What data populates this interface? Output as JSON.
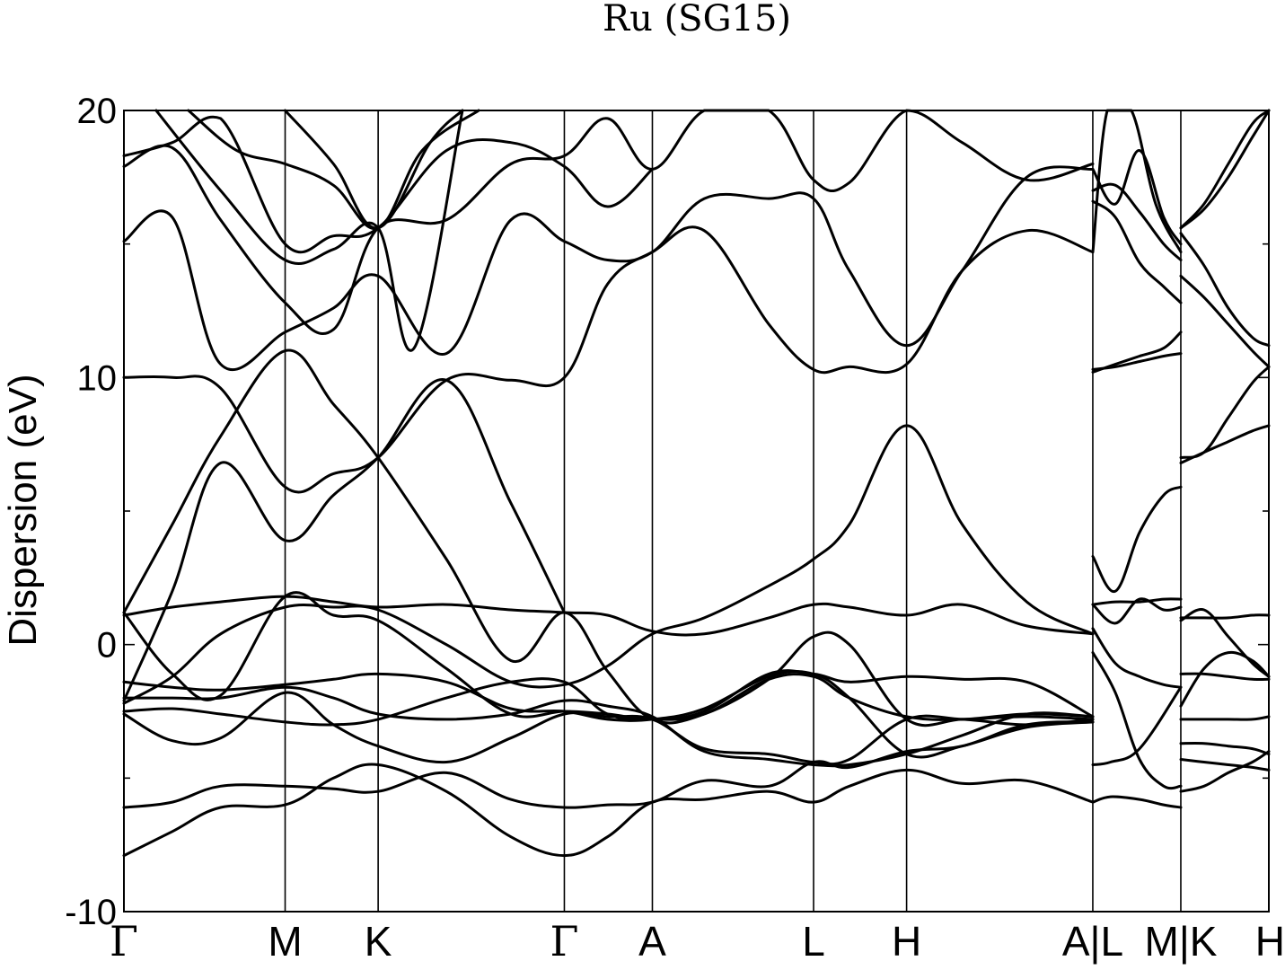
{
  "chart_data": {
    "type": "line",
    "title": "Ru (SG15)",
    "xlabel": "",
    "ylabel": "Dispersion (eV)",
    "ylim": [
      -10,
      20
    ],
    "y_ticks": [
      {
        "value": -10,
        "label": "-10"
      },
      {
        "value": 0,
        "label": "0"
      },
      {
        "value": 10,
        "label": "10"
      },
      {
        "value": 20,
        "label": "20"
      }
    ],
    "y_minor_ticks": [
      -5,
      5,
      15
    ],
    "x_ticks": [
      {
        "label": "Γ",
        "x": 0.0
      },
      {
        "label": "M",
        "x": 1.0
      },
      {
        "label": "K",
        "x": 1.577
      },
      {
        "label": "Γ",
        "x": 2.732
      },
      {
        "label": "A",
        "x": 3.278
      },
      {
        "label": "L",
        "x": 4.278
      },
      {
        "label": "H",
        "x": 4.855
      },
      {
        "label": "A|L",
        "x": 6.01
      },
      {
        "label": "M|K",
        "x": 6.556
      },
      {
        "label": "H",
        "x": 7.102
      }
    ],
    "xlim": [
      0,
      7.102
    ],
    "grid": false,
    "series": [
      {
        "x": [
          0,
          0.3,
          0.6,
          1.0,
          1.3,
          1.577,
          2.0,
          2.4,
          2.732,
          3.0,
          3.278,
          3.6,
          4.0,
          4.278,
          4.5,
          4.855,
          5.2,
          5.6,
          6.01
        ],
        "values": [
          -7.9,
          -7.0,
          -6.1,
          -6.0,
          -5.0,
          -4.5,
          -5.5,
          -7.2,
          -7.9,
          -7.2,
          -5.9,
          -5.8,
          -5.5,
          -5.9,
          -5.3,
          -4.7,
          -5.2,
          -5.1,
          -5.9
        ]
      },
      {
        "x": [
          0,
          0.3,
          0.6,
          1.0,
          1.3,
          1.577,
          2.0,
          2.4,
          2.732,
          3.0,
          3.278,
          3.6,
          4.0,
          4.278,
          4.5,
          4.855,
          5.2,
          5.6,
          6.01
        ],
        "values": [
          -6.1,
          -5.9,
          -5.3,
          -5.3,
          -5.4,
          -5.5,
          -4.8,
          -5.8,
          -6.1,
          -6.0,
          -5.9,
          -5.1,
          -5.3,
          -4.4,
          -4.6,
          -4.0,
          -3.8,
          -3.0,
          -2.9
        ]
      },
      {
        "x": [
          0,
          0.3,
          0.6,
          1.0,
          1.3,
          1.577,
          2.0,
          2.4,
          2.732,
          3.0,
          3.278,
          3.6,
          4.0,
          4.278,
          4.5,
          4.855,
          5.2,
          5.6,
          6.01
        ],
        "values": [
          -2.6,
          -3.6,
          -3.5,
          -1.8,
          -3.0,
          -3.8,
          -4.4,
          -3.5,
          -2.6,
          -2.7,
          -2.8,
          -3.9,
          -4.1,
          -4.4,
          -4.3,
          -2.8,
          -2.8,
          -3.0,
          -2.8
        ]
      },
      {
        "x": [
          0,
          0.3,
          0.6,
          1.0,
          1.3,
          1.577,
          2.0,
          2.4,
          2.732,
          3.0,
          3.278,
          3.6,
          4.0,
          4.278,
          4.5,
          4.855,
          5.2,
          5.6,
          6.01
        ],
        "values": [
          -2.5,
          -2.4,
          -2.6,
          -2.9,
          -3.0,
          -2.8,
          -2.0,
          -1.4,
          -1.4,
          -2.6,
          -2.8,
          -2.5,
          -1.1,
          -1.1,
          -1.4,
          -1.2,
          -1.3,
          -1.4,
          -2.7
        ]
      },
      {
        "x": [
          0,
          0.3,
          0.6,
          1.0,
          1.3,
          1.577,
          2.0,
          2.4,
          2.732,
          3.0,
          3.278,
          3.6,
          4.0,
          4.278,
          4.5,
          4.855,
          5.2,
          5.6,
          6.01
        ],
        "values": [
          -1.4,
          -1.6,
          -1.7,
          -1.5,
          -1.3,
          -1.1,
          -1.4,
          -2.4,
          -2.5,
          -2.8,
          -2.8,
          -2.4,
          -1.2,
          -1.1,
          -2.0,
          -4.1,
          -3.8,
          -3.1,
          -2.9
        ]
      },
      {
        "x": [
          0,
          0.3,
          0.6,
          1.0,
          1.3,
          1.577,
          2.0,
          2.4,
          2.732,
          3.0,
          3.278,
          3.6,
          4.0,
          4.278,
          4.5,
          4.855,
          5.2,
          5.6,
          6.01
        ],
        "values": [
          -2.0,
          -2.0,
          -2.0,
          -1.6,
          -2.0,
          -2.6,
          -2.8,
          -2.6,
          -2.1,
          -2.3,
          -2.7,
          -4.0,
          -4.3,
          -4.5,
          -4.5,
          -4.1,
          -3.4,
          -2.6,
          -2.7
        ]
      },
      {
        "x": [
          0,
          0.3,
          0.6,
          1.0,
          1.3,
          1.577,
          2.0,
          2.4,
          2.732,
          3.0,
          3.278,
          3.6,
          4.0,
          4.278,
          4.5,
          4.855,
          5.2,
          5.6,
          6.01
        ],
        "values": [
          1.1,
          1.4,
          1.6,
          1.8,
          1.6,
          1.4,
          1.5,
          1.3,
          1.2,
          1.1,
          0.5,
          0.4,
          1.0,
          1.5,
          1.4,
          1.1,
          1.5,
          0.7,
          0.4
        ]
      },
      {
        "x": [
          0,
          0.3,
          0.6,
          1.0,
          1.3,
          1.577,
          2.0,
          2.4,
          2.732,
          3.0,
          3.278,
          3.6,
          4.0,
          4.278,
          4.5,
          4.855,
          5.2,
          5.6,
          6.01
        ],
        "values": [
          -2.2,
          -1.2,
          0.4,
          1.4,
          1.4,
          1.3,
          0.0,
          -1.4,
          -1.5,
          -0.8,
          0.4,
          1.0,
          2.2,
          3.2,
          4.5,
          8.2,
          4.5,
          1.6,
          0.4
        ]
      },
      {
        "x": [
          0,
          0.3,
          0.6,
          1.0,
          1.3,
          1.577,
          2.0,
          2.4,
          2.732,
          3.0,
          3.278,
          3.6,
          4.0,
          4.278,
          4.5,
          4.855,
          5.2,
          5.6,
          6.01
        ],
        "values": [
          1.2,
          -1.1,
          -1.9,
          1.8,
          1.1,
          0.9,
          -0.9,
          -2.6,
          -2.5,
          -2.6,
          -2.8,
          -2.6,
          -1.3,
          0.3,
          0.0,
          -2.8,
          -2.8,
          -2.7,
          -2.8
        ]
      },
      {
        "x": [
          0,
          0.3,
          0.6,
          1.0,
          1.3,
          1.577,
          2.0,
          2.4,
          2.732,
          3.0,
          3.278,
          3.6,
          4.0,
          4.278,
          4.5,
          4.855,
          5.2,
          5.6,
          6.01
        ],
        "values": [
          1.2,
          4.5,
          7.8,
          11.0,
          9.0,
          7.0,
          3.2,
          -0.6,
          1.2,
          -1.0,
          -2.8,
          -2.6,
          -1.3,
          -1.2,
          -2.0,
          -2.7,
          -2.8,
          -2.6,
          -2.7
        ]
      },
      {
        "x": [
          0,
          0.3,
          0.6,
          1.0,
          1.3,
          1.577,
          2.0,
          2.4,
          2.732
        ],
        "values": [
          -2.1,
          2.0,
          6.8,
          3.9,
          5.6,
          7.0,
          9.9,
          5.3,
          1.2
        ]
      },
      {
        "x": [
          0,
          0.3,
          0.6,
          1.0,
          1.3,
          1.577,
          2.0,
          2.4,
          2.732,
          3.0,
          3.278,
          3.6,
          4.0,
          4.278,
          4.5,
          4.855,
          5.2,
          5.6,
          6.01
        ],
        "values": [
          10.0,
          10.0,
          9.6,
          5.9,
          6.4,
          7.0,
          9.9,
          9.9,
          10.0,
          13.5,
          14.7,
          15.5,
          12.0,
          10.3,
          10.4,
          10.5,
          14.0,
          15.5,
          14.7
        ]
      },
      {
        "x": [
          0,
          0.3,
          0.6,
          1.0,
          1.3,
          1.577,
          2.0,
          2.4,
          2.732,
          3.0,
          3.278,
          3.6,
          4.0,
          4.278,
          4.5,
          4.855,
          5.2,
          5.6,
          6.01
        ],
        "values": [
          15.1,
          16.0,
          10.5,
          11.7,
          12.6,
          13.8,
          10.9,
          15.9,
          15.1,
          14.4,
          14.7,
          16.7,
          16.7,
          16.7,
          14.0,
          11.2,
          14.0,
          17.5,
          17.8
        ]
      },
      {
        "x": [
          0,
          0.3,
          0.6,
          1.0,
          1.3,
          1.577,
          2.0,
          2.4,
          2.732,
          3.0,
          3.278,
          3.6,
          4.0,
          4.278,
          4.5,
          4.855,
          5.2,
          5.6,
          6.01
        ],
        "values": [
          17.9,
          18.6,
          15.9,
          12.8,
          11.8,
          15.6,
          15.9,
          18.0,
          18.3,
          19.7,
          17.8,
          20.0,
          20.0,
          17.4,
          17.3,
          20.0,
          18.8,
          17.4,
          18.0
        ]
      },
      {
        "x": [
          0,
          0.3,
          0.6,
          1.0,
          1.3,
          1.577,
          2.0,
          2.4,
          2.732,
          3.0,
          3.278
        ],
        "values": [
          18.3,
          18.8,
          19.7,
          15.0,
          15.3,
          15.6,
          18.5,
          18.8,
          17.9,
          16.4,
          17.8
        ]
      },
      {
        "x": [
          0.2,
          0.6,
          1.0,
          1.3,
          1.577,
          1.8,
          2.1
        ],
        "values": [
          20.0,
          17.0,
          14.4,
          14.8,
          15.6,
          11.1,
          20.0
        ]
      },
      {
        "x": [
          0.4,
          0.7,
          1.0,
          1.3,
          1.577,
          1.85,
          2.2
        ],
        "values": [
          20.0,
          18.5,
          18.0,
          17.2,
          15.6,
          18.5,
          20.0
        ]
      },
      {
        "x": [
          1.0,
          1.3,
          1.577,
          1.9,
          2.1
        ],
        "values": [
          20.0,
          18.0,
          15.6,
          18.8,
          20.0
        ]
      },
      {
        "x": [
          6.01,
          6.12,
          6.3,
          6.556
        ],
        "values": [
          -4.5,
          -4.4,
          -3.9,
          -1.6
        ]
      },
      {
        "x": [
          6.01,
          6.15,
          6.3,
          6.45,
          6.556
        ],
        "values": [
          -0.3,
          -1.8,
          -4.3,
          -5.3,
          -5.3
        ]
      },
      {
        "x": [
          6.01,
          6.15,
          6.3,
          6.45,
          6.556
        ],
        "values": [
          0.6,
          -0.7,
          -1.2,
          -1.5,
          -1.6
        ]
      },
      {
        "x": [
          6.01,
          6.15,
          6.3,
          6.45,
          6.556
        ],
        "values": [
          1.5,
          0.8,
          1.7,
          1.3,
          1.4
        ]
      },
      {
        "x": [
          6.01,
          6.15,
          6.3,
          6.45,
          6.556
        ],
        "values": [
          1.5,
          1.6,
          1.6,
          1.7,
          1.7
        ]
      },
      {
        "x": [
          6.01,
          6.15,
          6.3,
          6.45,
          6.556
        ],
        "values": [
          3.3,
          2.0,
          4.2,
          5.6,
          5.9
        ]
      },
      {
        "x": [
          6.01,
          6.12,
          6.3,
          6.45,
          6.556
        ],
        "values": [
          -5.9,
          -5.7,
          -5.8,
          -6.0,
          -6.1
        ]
      },
      {
        "x": [
          6.01,
          6.15,
          6.3,
          6.45,
          6.556
        ],
        "values": [
          10.2,
          10.5,
          10.8,
          11.1,
          11.7
        ]
      },
      {
        "x": [
          6.01,
          6.15,
          6.3,
          6.45,
          6.556
        ],
        "values": [
          10.3,
          10.4,
          10.6,
          10.8,
          10.9
        ]
      },
      {
        "x": [
          6.01,
          6.15,
          6.3,
          6.45,
          6.556
        ],
        "values": [
          16.6,
          16.0,
          14.3,
          13.4,
          12.8
        ]
      },
      {
        "x": [
          6.01,
          6.15,
          6.3,
          6.45,
          6.556
        ],
        "values": [
          17.0,
          17.2,
          16.2,
          15.0,
          14.4
        ]
      },
      {
        "x": [
          6.01,
          6.15,
          6.3,
          6.45,
          6.556
        ],
        "values": [
          17.8,
          16.5,
          18.5,
          16.0,
          15.0
        ]
      },
      {
        "x": [
          6.01,
          6.1,
          6.25,
          6.4,
          6.556
        ],
        "values": [
          14.7,
          20.0,
          20.0,
          16.5,
          14.7
        ]
      },
      {
        "x": [
          6.556,
          6.7,
          6.85,
          7.0,
          7.102
        ],
        "values": [
          -5.5,
          -5.3,
          -4.8,
          -4.4,
          -4.0
        ]
      },
      {
        "x": [
          6.556,
          6.7,
          6.85,
          7.0,
          7.102
        ],
        "values": [
          -4.3,
          -4.4,
          -4.5,
          -4.6,
          -4.7
        ]
      },
      {
        "x": [
          6.556,
          6.7,
          6.85,
          7.0,
          7.102
        ],
        "values": [
          -3.7,
          -3.7,
          -3.8,
          -3.9,
          -4.1
        ]
      },
      {
        "x": [
          6.556,
          6.7,
          6.85,
          7.0,
          7.102
        ],
        "values": [
          -2.8,
          -2.8,
          -2.8,
          -2.8,
          -2.7
        ]
      },
      {
        "x": [
          6.556,
          6.7,
          6.85,
          7.0,
          7.102
        ],
        "values": [
          -1.1,
          -1.1,
          -1.2,
          -1.3,
          -1.3
        ]
      },
      {
        "x": [
          6.556,
          6.7,
          6.85,
          7.0,
          7.102
        ],
        "values": [
          -2.3,
          -0.9,
          -0.3,
          -0.6,
          -1.2
        ]
      },
      {
        "x": [
          6.556,
          6.7,
          6.85,
          7.0,
          7.102
        ],
        "values": [
          0.9,
          1.3,
          0.3,
          -0.7,
          -1.2
        ]
      },
      {
        "x": [
          6.556,
          6.7,
          6.85,
          7.0,
          7.102
        ],
        "values": [
          1.0,
          1.0,
          1.0,
          1.1,
          1.1
        ]
      },
      {
        "x": [
          6.556,
          6.7,
          6.85,
          7.0,
          7.102
        ],
        "values": [
          6.8,
          7.2,
          7.6,
          8.0,
          8.2
        ]
      },
      {
        "x": [
          6.556,
          6.7,
          6.85,
          7.0,
          7.102
        ],
        "values": [
          7.0,
          7.2,
          8.5,
          9.8,
          10.4
        ]
      },
      {
        "x": [
          6.556,
          6.7,
          6.85,
          7.0,
          7.102
        ],
        "values": [
          13.8,
          13.0,
          12.0,
          11.0,
          10.4
        ]
      },
      {
        "x": [
          6.556,
          6.7,
          6.85,
          7.0,
          7.102
        ],
        "values": [
          15.4,
          14.2,
          12.6,
          11.5,
          11.2
        ]
      },
      {
        "x": [
          6.556,
          6.7,
          6.85,
          7.0,
          7.102
        ],
        "values": [
          15.6,
          16.5,
          18.0,
          19.5,
          20.0
        ]
      },
      {
        "x": [
          6.556,
          6.7,
          6.85,
          7.0,
          7.102
        ],
        "values": [
          15.6,
          16.3,
          17.5,
          19.0,
          20.0
        ]
      }
    ]
  }
}
